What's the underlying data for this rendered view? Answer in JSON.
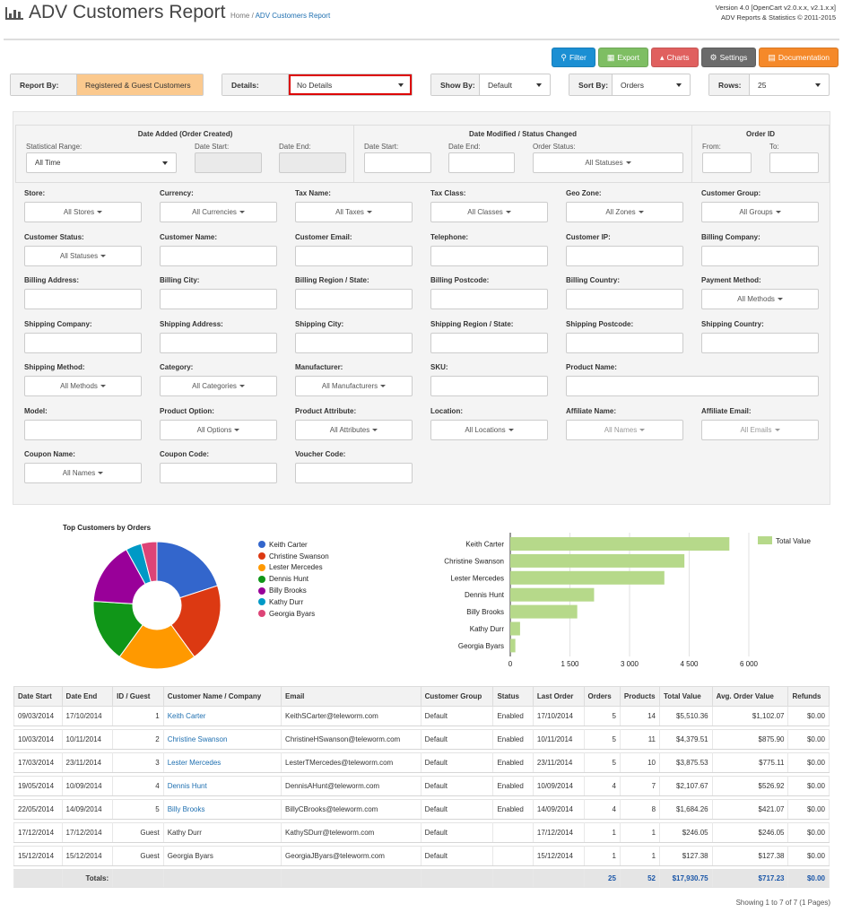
{
  "header": {
    "title": "ADV Customers Report",
    "breadcrumb_home": "Home",
    "breadcrumb_sep": "/",
    "breadcrumb_current": "ADV Customers Report",
    "version_line1": "Version 4.0 [OpenCart v2.0.x.x, v2.1.x.x]",
    "version_line2": "ADV Reports & Statistics © 2011-2015"
  },
  "toolbar": {
    "filter": "Filter",
    "export": "Export",
    "charts": "Charts",
    "settings": "Settings",
    "documentation": "Documentation"
  },
  "selects": {
    "report_by_label": "Report By:",
    "report_by_value": "Registered & Guest Customers",
    "details_label": "Details:",
    "details_value": "No Details",
    "show_by_label": "Show By:",
    "show_by_value": "Default",
    "sort_by_label": "Sort By:",
    "sort_by_value": "Orders",
    "rows_label": "Rows:",
    "rows_value": "25"
  },
  "filters": {
    "date_added_title": "Date Added (Order Created)",
    "statistical_range_label": "Statistical Range:",
    "statistical_range_value": "All Time",
    "date_start_label": "Date Start:",
    "date_end_label": "Date End:",
    "date_modified_title": "Date Modified / Status Changed",
    "order_status_label": "Order Status:",
    "order_status_value": "All Statuses",
    "order_id_title": "Order ID",
    "from_label": "From:",
    "to_label": "To:",
    "store": "Store:",
    "store_v": "All Stores",
    "currency": "Currency:",
    "currency_v": "All Currencies",
    "tax_name": "Tax Name:",
    "tax_name_v": "All Taxes",
    "tax_class": "Tax Class:",
    "tax_class_v": "All Classes",
    "geo_zone": "Geo Zone:",
    "geo_zone_v": "All Zones",
    "customer_group": "Customer Group:",
    "customer_group_v": "All Groups",
    "customer_status": "Customer Status:",
    "customer_status_v": "All Statuses",
    "customer_name": "Customer Name:",
    "customer_email": "Customer Email:",
    "telephone": "Telephone:",
    "customer_ip": "Customer IP:",
    "billing_company": "Billing Company:",
    "billing_address": "Billing Address:",
    "billing_city": "Billing City:",
    "billing_region": "Billing Region / State:",
    "billing_postcode": "Billing Postcode:",
    "billing_country": "Billing Country:",
    "payment_method": "Payment Method:",
    "payment_method_v": "All Methods",
    "shipping_company": "Shipping Company:",
    "shipping_address": "Shipping Address:",
    "shipping_city": "Shipping City:",
    "shipping_region": "Shipping Region / State:",
    "shipping_postcode": "Shipping Postcode:",
    "shipping_country": "Shipping Country:",
    "shipping_method": "Shipping Method:",
    "shipping_method_v": "All Methods",
    "category": "Category:",
    "category_v": "All Categories",
    "manufacturer": "Manufacturer:",
    "manufacturer_v": "All Manufacturers",
    "sku": "SKU:",
    "product_name": "Product Name:",
    "model": "Model:",
    "product_option": "Product Option:",
    "product_option_v": "All Options",
    "product_attribute": "Product Attribute:",
    "product_attribute_v": "All Attributes",
    "location": "Location:",
    "location_v": "All Locations",
    "affiliate_name": "Affiliate Name:",
    "affiliate_name_v": "All Names",
    "affiliate_email": "Affiliate Email:",
    "affiliate_email_v": "All Emails",
    "coupon_name": "Coupon Name:",
    "coupon_name_v": "All Names",
    "coupon_code": "Coupon Code:",
    "voucher_code": "Voucher Code:"
  },
  "chart_data": [
    {
      "type": "pie",
      "title": "Top Customers by Orders",
      "categories": [
        "Keith Carter",
        "Christine Swanson",
        "Lester Mercedes",
        "Dennis Hunt",
        "Billy Brooks",
        "Kathy Durr",
        "Georgia Byars"
      ],
      "values": [
        5,
        5,
        5,
        4,
        4,
        1,
        1
      ],
      "colors": [
        "#3366cc",
        "#dc3912",
        "#ff9900",
        "#109618",
        "#990099",
        "#0099c6",
        "#dd4477"
      ]
    },
    {
      "type": "bar",
      "orientation": "horizontal",
      "categories": [
        "Keith Carter",
        "Christine Swanson",
        "Lester Mercedes",
        "Dennis Hunt",
        "Billy Brooks",
        "Kathy Durr",
        "Georgia Byars"
      ],
      "series": [
        {
          "name": "Total Value",
          "values": [
            5510.36,
            4379.51,
            3875.53,
            2107.67,
            1684.26,
            246.05,
            127.38
          ],
          "color": "#b6d98a"
        }
      ],
      "xticks": [
        "0",
        "1 500",
        "3 000",
        "4 500",
        "6 000"
      ],
      "xlim": [
        0,
        6000
      ]
    }
  ],
  "table": {
    "columns": [
      "Date Start",
      "Date End",
      "ID / Guest",
      "Customer Name / Company",
      "Email",
      "Customer Group",
      "Status",
      "Last Order",
      "Orders",
      "Products",
      "Total Value",
      "Avg. Order Value",
      "Refunds"
    ],
    "rows": [
      [
        "09/03/2014",
        "17/10/2014",
        "1",
        "Keith Carter",
        "KeithSCarter@teleworm.com",
        "Default",
        "Enabled",
        "17/10/2014",
        "5",
        "14",
        "$5,510.36",
        "$1,102.07",
        "$0.00"
      ],
      [
        "10/03/2014",
        "10/11/2014",
        "2",
        "Christine Swanson",
        "ChristineHSwanson@teleworm.com",
        "Default",
        "Enabled",
        "10/11/2014",
        "5",
        "11",
        "$4,379.51",
        "$875.90",
        "$0.00"
      ],
      [
        "17/03/2014",
        "23/11/2014",
        "3",
        "Lester Mercedes",
        "LesterTMercedes@teleworm.com",
        "Default",
        "Enabled",
        "23/11/2014",
        "5",
        "10",
        "$3,875.53",
        "$775.11",
        "$0.00"
      ],
      [
        "19/05/2014",
        "10/09/2014",
        "4",
        "Dennis Hunt",
        "DennisAHunt@teleworm.com",
        "Default",
        "Enabled",
        "10/09/2014",
        "4",
        "7",
        "$2,107.67",
        "$526.92",
        "$0.00"
      ],
      [
        "22/05/2014",
        "14/09/2014",
        "5",
        "Billy Brooks",
        "BillyCBrooks@teleworm.com",
        "Default",
        "Enabled",
        "14/09/2014",
        "4",
        "8",
        "$1,684.26",
        "$421.07",
        "$0.00"
      ],
      [
        "17/12/2014",
        "17/12/2014",
        "Guest",
        "Kathy Durr",
        "KathySDurr@teleworm.com",
        "Default",
        "",
        "17/12/2014",
        "1",
        "1",
        "$246.05",
        "$246.05",
        "$0.00"
      ],
      [
        "15/12/2014",
        "15/12/2014",
        "Guest",
        "Georgia Byars",
        "GeorgiaJByars@teleworm.com",
        "Default",
        "",
        "15/12/2014",
        "1",
        "1",
        "$127.38",
        "$127.38",
        "$0.00"
      ]
    ],
    "totals_label": "Totals:",
    "totals": {
      "orders": "25",
      "products": "52",
      "total_value": "$17,930.75",
      "avg": "$717.23",
      "refunds": "$0.00"
    }
  },
  "footer": {
    "showing": "Showing 1 to 7 of 7 (1 Pages)"
  }
}
